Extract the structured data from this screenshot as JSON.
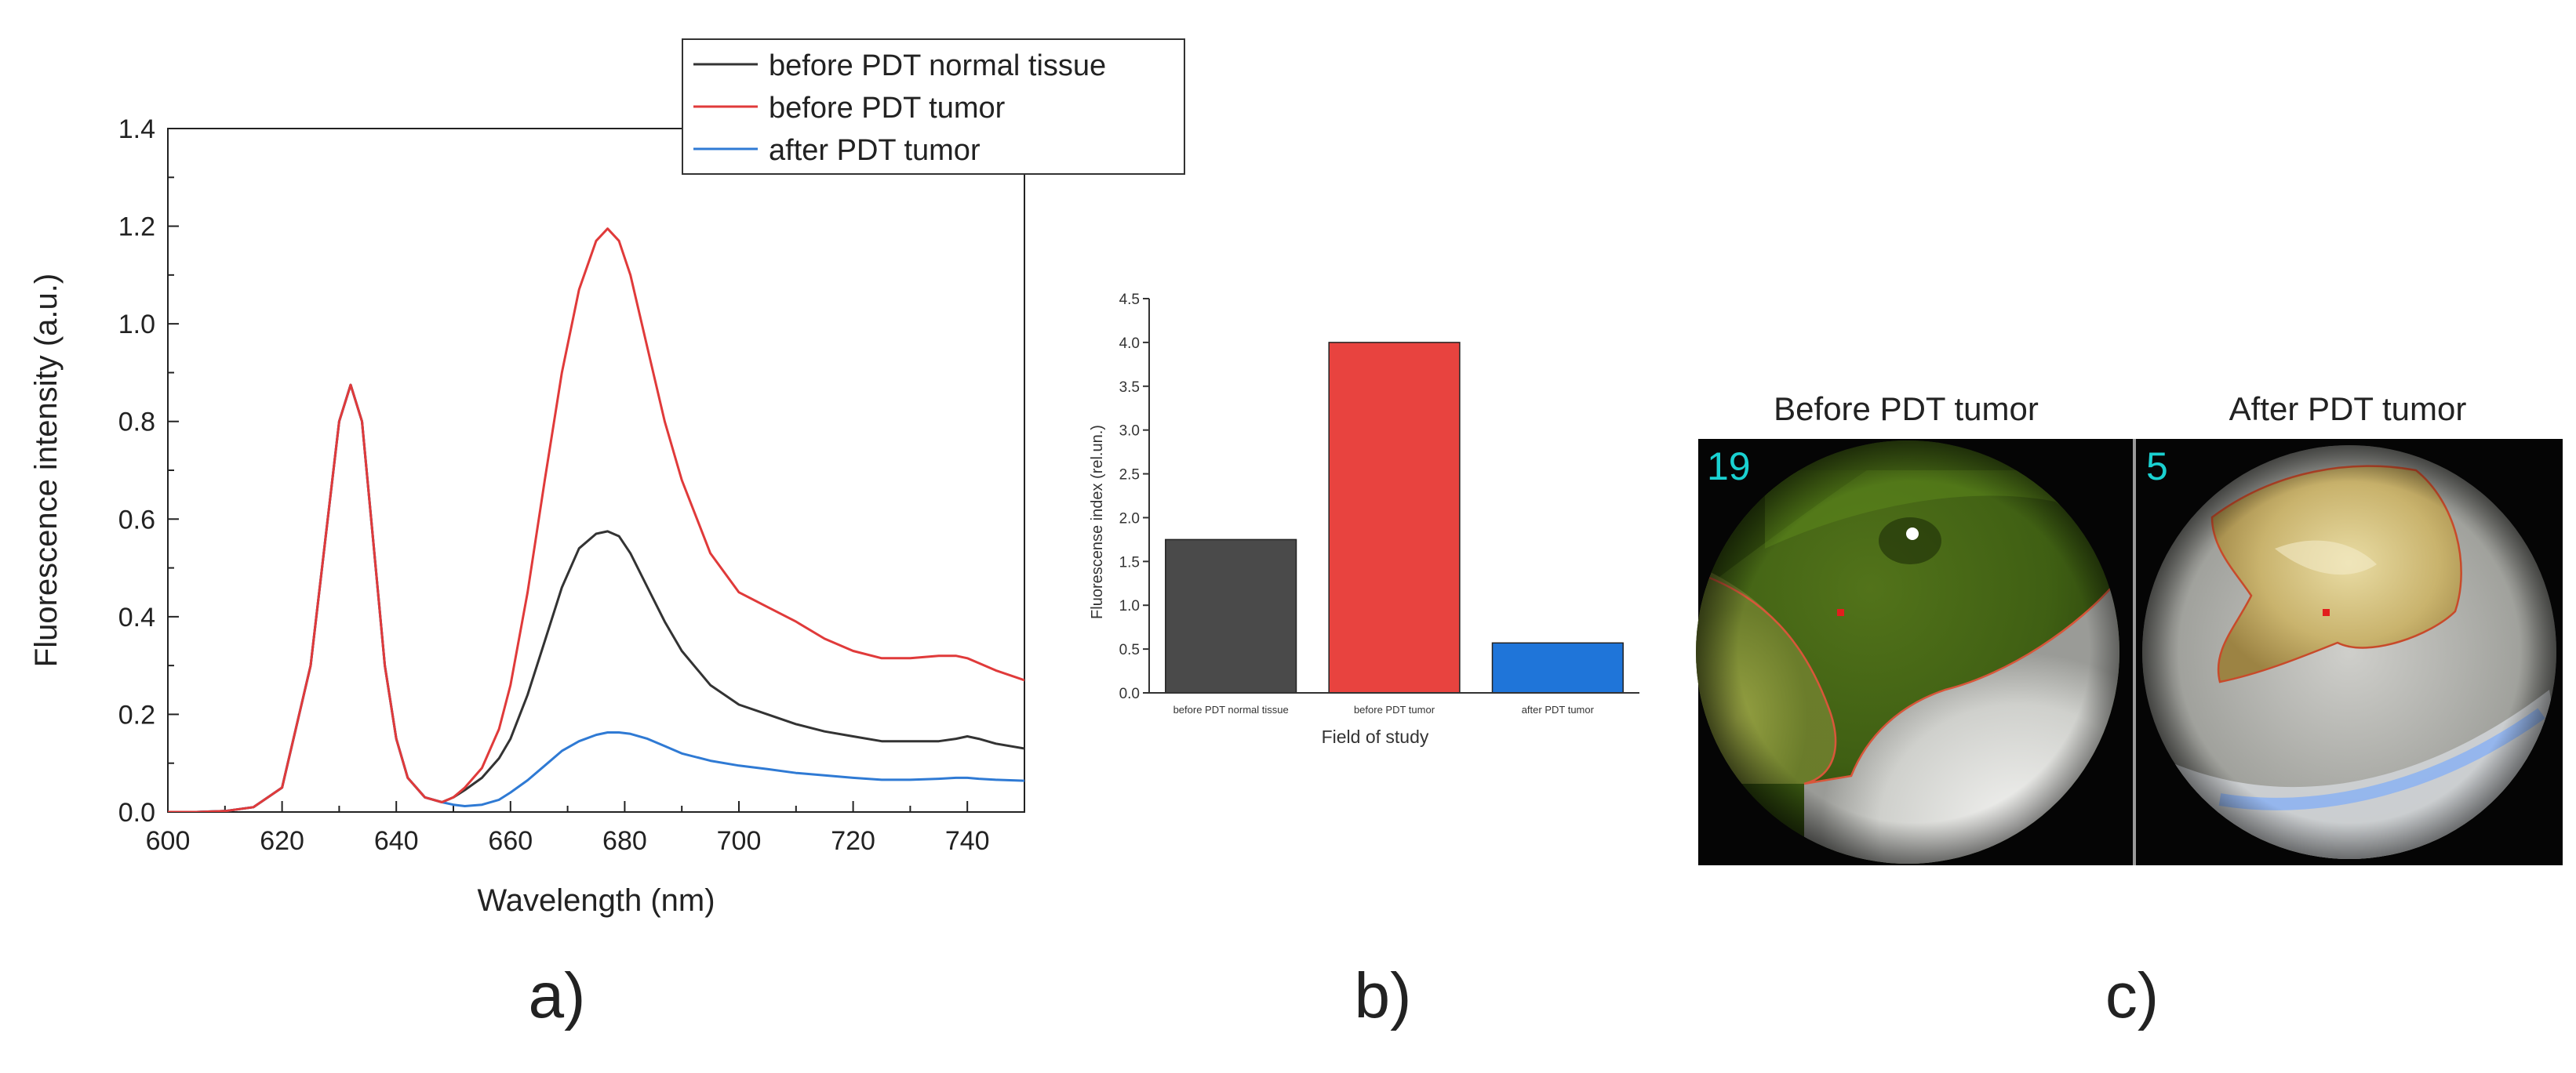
{
  "chart_data": [
    {
      "type": "line",
      "panel_label": "a)",
      "title": "",
      "xlabel": "Wavelength (nm)",
      "ylabel": "Fluorescence intensity (a.u.)",
      "xlim": [
        600,
        750
      ],
      "ylim": [
        0,
        1.4
      ],
      "xticks": [
        600,
        620,
        640,
        660,
        680,
        700,
        720,
        740
      ],
      "yticks": [
        0.0,
        0.2,
        0.4,
        0.6,
        0.8,
        1.0,
        1.2,
        1.4
      ],
      "xtick_labels": [
        "600",
        "620",
        "640",
        "660",
        "680",
        "700",
        "720",
        "740"
      ],
      "ytick_labels": [
        "0.0",
        "0.2",
        "0.4",
        "0.6",
        "0.8",
        "1.0",
        "1.2",
        "1.4"
      ],
      "legend_position": "top-right",
      "series": [
        {
          "name": "before PDT normal tissue",
          "color": "#333333",
          "x": [
            600,
            605,
            610,
            615,
            620,
            625,
            628,
            630,
            632,
            634,
            636,
            638,
            640,
            642,
            645,
            648,
            650,
            652,
            655,
            658,
            660,
            663,
            666,
            669,
            672,
            675,
            677,
            679,
            681,
            684,
            687,
            690,
            695,
            700,
            705,
            710,
            715,
            720,
            725,
            730,
            735,
            738,
            740,
            742,
            745,
            750
          ],
          "y": [
            0,
            0,
            0.002,
            0.01,
            0.05,
            0.3,
            0.6,
            0.8,
            0.875,
            0.8,
            0.55,
            0.3,
            0.15,
            0.07,
            0.03,
            0.02,
            0.03,
            0.045,
            0.07,
            0.11,
            0.15,
            0.24,
            0.35,
            0.46,
            0.54,
            0.57,
            0.575,
            0.565,
            0.53,
            0.46,
            0.39,
            0.33,
            0.26,
            0.22,
            0.2,
            0.18,
            0.165,
            0.155,
            0.145,
            0.145,
            0.145,
            0.15,
            0.155,
            0.15,
            0.14,
            0.13
          ]
        },
        {
          "name": "before PDT tumor",
          "color": "#e03a3a",
          "x": [
            600,
            605,
            610,
            615,
            620,
            625,
            628,
            630,
            632,
            634,
            636,
            638,
            640,
            642,
            645,
            648,
            650,
            652,
            655,
            658,
            660,
            663,
            666,
            669,
            672,
            675,
            677,
            679,
            681,
            684,
            687,
            690,
            695,
            700,
            705,
            710,
            715,
            720,
            725,
            730,
            735,
            738,
            740,
            742,
            745,
            750
          ],
          "y": [
            0,
            0,
            0.002,
            0.01,
            0.05,
            0.3,
            0.6,
            0.8,
            0.875,
            0.8,
            0.55,
            0.3,
            0.15,
            0.07,
            0.03,
            0.02,
            0.03,
            0.05,
            0.09,
            0.17,
            0.26,
            0.45,
            0.68,
            0.9,
            1.07,
            1.17,
            1.195,
            1.17,
            1.1,
            0.95,
            0.8,
            0.68,
            0.53,
            0.45,
            0.42,
            0.39,
            0.355,
            0.33,
            0.315,
            0.315,
            0.32,
            0.32,
            0.315,
            0.305,
            0.29,
            0.27
          ]
        },
        {
          "name": "after PDT tumor",
          "color": "#2f7ad4",
          "x": [
            600,
            605,
            610,
            615,
            620,
            625,
            628,
            630,
            632,
            634,
            636,
            638,
            640,
            642,
            645,
            648,
            650,
            652,
            655,
            658,
            660,
            663,
            666,
            669,
            672,
            675,
            677,
            679,
            681,
            684,
            687,
            690,
            695,
            700,
            705,
            710,
            715,
            720,
            725,
            730,
            735,
            738,
            740,
            742,
            745,
            750
          ],
          "y": [
            0,
            0,
            0.002,
            0.01,
            0.05,
            0.3,
            0.6,
            0.8,
            0.875,
            0.8,
            0.55,
            0.3,
            0.15,
            0.07,
            0.03,
            0.02,
            0.015,
            0.012,
            0.015,
            0.025,
            0.04,
            0.065,
            0.095,
            0.125,
            0.145,
            0.158,
            0.163,
            0.163,
            0.16,
            0.15,
            0.135,
            0.12,
            0.105,
            0.095,
            0.088,
            0.08,
            0.075,
            0.07,
            0.066,
            0.066,
            0.068,
            0.07,
            0.07,
            0.068,
            0.066,
            0.064
          ]
        }
      ]
    },
    {
      "type": "bar",
      "panel_label": "b)",
      "title": "",
      "xlabel": "Field of study",
      "ylabel": "Fluorescense index (rel.un.)",
      "ylim": [
        0,
        4.5
      ],
      "yticks": [
        0.0,
        0.5,
        1.0,
        1.5,
        2.0,
        2.5,
        3.0,
        3.5,
        4.0,
        4.5
      ],
      "ytick_labels": [
        "0.0",
        "0.5",
        "1.0",
        "1.5",
        "2.0",
        "2.5",
        "3.0",
        "3.5",
        "4.0",
        "4.5"
      ],
      "categories": [
        "before PDT normal tissue",
        "before PDT tumor",
        "after PDT tumor"
      ],
      "values": [
        1.75,
        4.0,
        0.57
      ],
      "colors": [
        "#4a4a4a",
        "#e8433f",
        "#1f75d9"
      ]
    }
  ],
  "photos": {
    "panel_label": "c)",
    "left": {
      "title": "Before PDT tumor",
      "index": "19"
    },
    "right": {
      "title": "After PDT tumor",
      "index": "5"
    },
    "index_color": "#1ad1d1"
  }
}
